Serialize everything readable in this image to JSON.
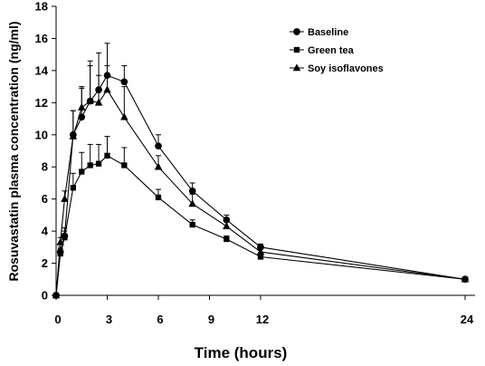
{
  "chart_data": {
    "type": "line",
    "xlabel": "Time (hours)",
    "ylabel": "Rosuvastatin plasma concentration (ng/ml)",
    "xlim": [
      0,
      24
    ],
    "ylim": [
      0,
      18
    ],
    "xticks": [
      0,
      3,
      6,
      9,
      12,
      24
    ],
    "yticks": [
      0,
      2,
      4,
      6,
      8,
      10,
      12,
      14,
      16,
      18
    ],
    "grid": false,
    "legend_position": "top-right",
    "series": [
      {
        "name": "Baseline",
        "marker": "circle",
        "x": [
          0,
          0.25,
          0.5,
          1,
          1.5,
          2,
          2.5,
          3,
          4,
          6,
          8,
          10,
          12,
          24
        ],
        "y": [
          0,
          2.7,
          3.7,
          10.0,
          11.1,
          12.1,
          12.8,
          13.7,
          13.3,
          9.3,
          6.5,
          4.7,
          3.0,
          1.0
        ],
        "error": [
          0,
          0.3,
          0.5,
          1.5,
          1.8,
          2.2,
          2.3,
          2.0,
          1.0,
          0.7,
          0.5,
          0.3,
          0.2,
          0.1
        ]
      },
      {
        "name": "Green tea",
        "marker": "square",
        "x": [
          0,
          0.25,
          0.5,
          1,
          1.5,
          2,
          2.5,
          3,
          4,
          6,
          8,
          10,
          12,
          24
        ],
        "y": [
          0,
          2.6,
          3.6,
          6.7,
          7.7,
          8.1,
          8.2,
          8.7,
          8.1,
          6.1,
          4.4,
          3.5,
          2.4,
          1.0
        ],
        "error": [
          0,
          0.3,
          0.4,
          0.9,
          1.2,
          1.3,
          1.2,
          1.2,
          1.1,
          0.5,
          0.3,
          0.2,
          0.2,
          0.1
        ]
      },
      {
        "name": "Soy isoflavones",
        "marker": "triangle",
        "x": [
          0,
          0.25,
          0.5,
          1,
          1.5,
          2,
          2.5,
          3,
          4,
          6,
          8,
          10,
          12,
          24
        ],
        "y": [
          0,
          3.3,
          6.0,
          9.9,
          11.7,
          12.1,
          12.0,
          12.8,
          11.1,
          8.0,
          5.7,
          4.3,
          2.7,
          1.0
        ],
        "error": [
          0,
          0.3,
          0.5,
          1.6,
          1.3,
          2.5,
          1.7,
          1.5,
          1.9,
          0.7,
          0.6,
          0.4,
          0.2,
          0.1
        ]
      }
    ]
  }
}
